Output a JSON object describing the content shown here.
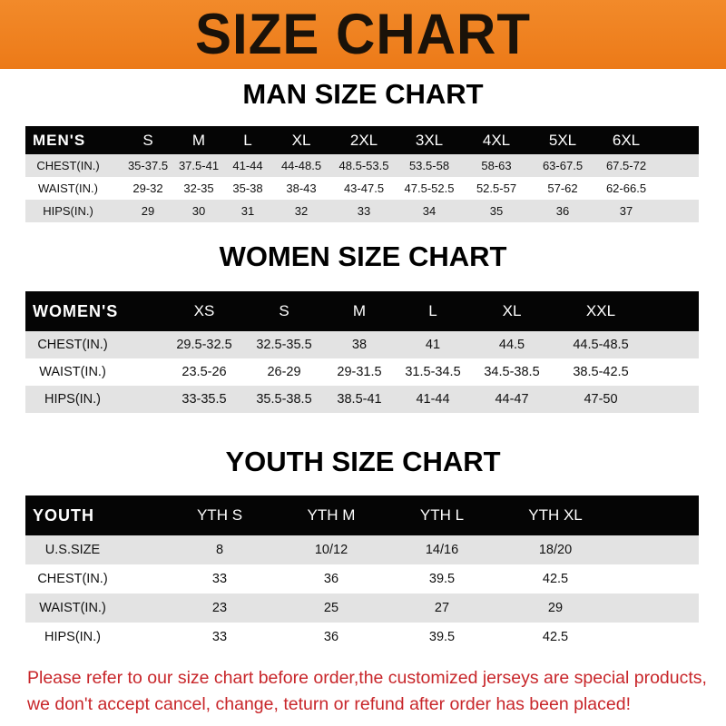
{
  "banner": {
    "title": "SIZE CHART",
    "color": "#ef821f"
  },
  "men": {
    "title": "MAN SIZE CHART",
    "header": [
      "MEN'S",
      "S",
      "M",
      "L",
      "XL",
      "2XL",
      "3XL",
      "4XL",
      "5XL",
      "6XL"
    ],
    "rows": [
      [
        "CHEST(IN.)",
        "35-37.5",
        "37.5-41",
        "41-44",
        "44-48.5",
        "48.5-53.5",
        "53.5-58",
        "58-63",
        "63-67.5",
        "67.5-72"
      ],
      [
        "WAIST(IN.)",
        "29-32",
        "32-35",
        "35-38",
        "38-43",
        "43-47.5",
        "47.5-52.5",
        "52.5-57",
        "57-62",
        "62-66.5"
      ],
      [
        "HIPS(IN.)",
        "29",
        "30",
        "31",
        "32",
        "33",
        "34",
        "35",
        "36",
        "37"
      ]
    ]
  },
  "women": {
    "title": "WOMEN SIZE CHART",
    "header": [
      "WOMEN'S",
      "XS",
      "S",
      "M",
      "L",
      "XL",
      "XXL"
    ],
    "rows": [
      [
        "CHEST(IN.)",
        "29.5-32.5",
        "32.5-35.5",
        "38",
        "41",
        "44.5",
        "44.5-48.5"
      ],
      [
        "WAIST(IN.)",
        "23.5-26",
        "26-29",
        "29-31.5",
        "31.5-34.5",
        "34.5-38.5",
        "38.5-42.5"
      ],
      [
        "HIPS(IN.)",
        "33-35.5",
        "35.5-38.5",
        "38.5-41",
        "41-44",
        "44-47",
        "47-50"
      ]
    ]
  },
  "youth": {
    "title": "YOUTH SIZE CHART",
    "header": [
      "YOUTH",
      "YTH S",
      "YTH M",
      "YTH L",
      "YTH XL"
    ],
    "rows": [
      [
        "U.S.SIZE",
        "8",
        "10/12",
        "14/16",
        "18/20"
      ],
      [
        "CHEST(IN.)",
        "33",
        "36",
        "39.5",
        "42.5"
      ],
      [
        "WAIST(IN.)",
        "23",
        "25",
        "27",
        "29"
      ],
      [
        "HIPS(IN.)",
        "33",
        "36",
        "39.5",
        "42.5"
      ]
    ]
  },
  "footer": {
    "line1": "Please refer to our size chart before order,the customized jerseys are special products,",
    "line2": "we don't accept cancel, change, teturn or refund after order has been placed!",
    "color": "#c8262a"
  }
}
